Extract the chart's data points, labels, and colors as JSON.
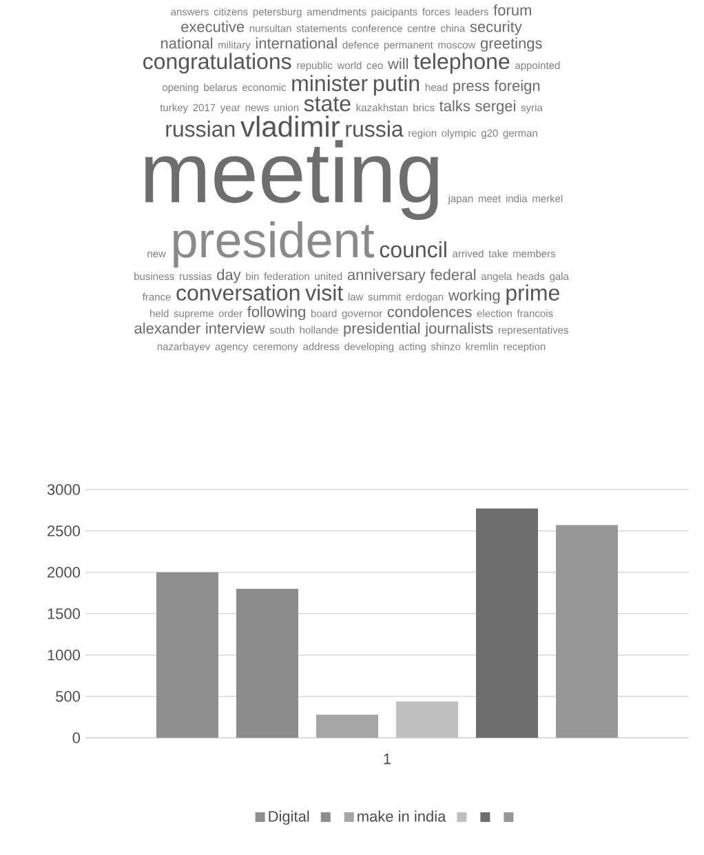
{
  "chart_data": [
    {
      "type": "other",
      "annotations": [
        "answers",
        "citizens",
        "petersburg",
        "amendments",
        "paicipants",
        "forces",
        "leaders",
        "forum",
        "executive",
        "nursultan",
        "statements",
        "conference",
        "centre",
        "china",
        "security",
        "national",
        "military",
        "international",
        "defence",
        "permanent",
        "moscow",
        "greetings",
        "congratulations",
        "republic",
        "world",
        "ceo",
        "will",
        "telephone",
        "appointed",
        "opening",
        "belarus",
        "economic",
        "minister",
        "putin",
        "head",
        "press",
        "foreign",
        "turkey",
        "2017",
        "year",
        "news",
        "union",
        "state",
        "kazakhstan",
        "brics",
        "talks",
        "sergei",
        "syria",
        "russian",
        "vladimir",
        "russia",
        "region",
        "olympic",
        "g20",
        "german",
        "meeting",
        "japan",
        "meet",
        "india",
        "merkel",
        "new",
        "president",
        "council",
        "arrived",
        "take",
        "members",
        "business",
        "russias",
        "day",
        "bin",
        "federation",
        "united",
        "anniversary",
        "federal",
        "angela",
        "heads",
        "gala",
        "france",
        "conversation",
        "visit",
        "law",
        "summit",
        "erdogan",
        "working",
        "prime",
        "held",
        "supreme",
        "order",
        "following",
        "board",
        "governor",
        "condolences",
        "election",
        "francois",
        "alexander",
        "interview",
        "south",
        "hollande",
        "presidential",
        "journalists",
        "representatives",
        "nazarbayev",
        "agency",
        "ceremony",
        "address",
        "developing",
        "acting",
        "shinzo",
        "kremlin",
        "reception"
      ]
    },
    {
      "type": "bar",
      "categories": [
        "1"
      ],
      "series": [
        {
          "name": "Digital",
          "color": "#8f8f8f",
          "values": [
            2000
          ]
        },
        {
          "color": "#8c8c8c",
          "values": [
            1800
          ]
        },
        {
          "name": "make in india",
          "color": "#a5a5a5",
          "values": [
            280
          ]
        },
        {
          "color": "#bfbfbf",
          "values": [
            440
          ]
        },
        {
          "color": "#6e6e6e",
          "values": [
            2770
          ]
        },
        {
          "color": "#979797",
          "values": [
            2570
          ]
        }
      ],
      "ylim": [
        0,
        3000
      ],
      "yticks": [
        0,
        500,
        1000,
        1500,
        2000,
        2500,
        3000
      ],
      "grid": "y",
      "legend": "bottom"
    }
  ]
}
